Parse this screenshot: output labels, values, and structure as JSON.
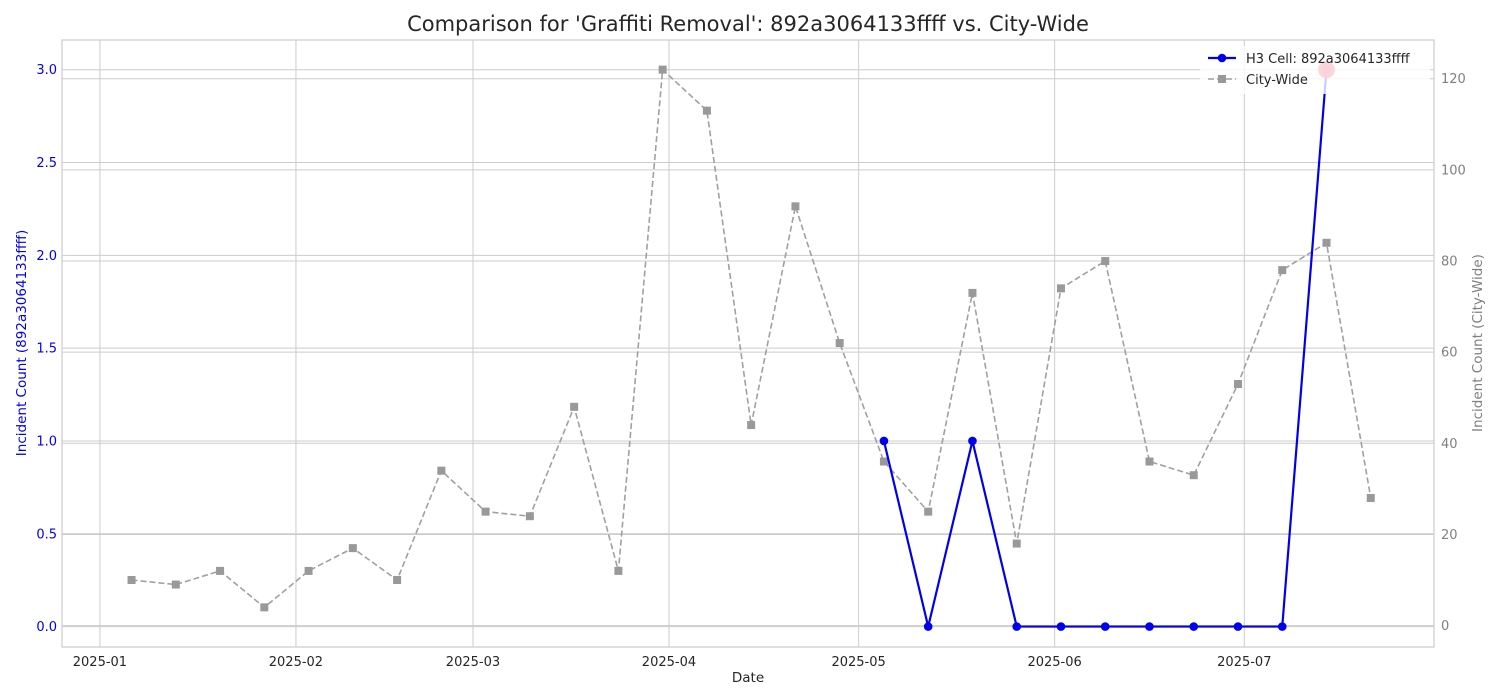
{
  "chart_data": {
    "type": "line",
    "title": "Comparison for 'Graffiti Removal': 892a3064133ffff vs. City-Wide",
    "xlabel": "Date",
    "ylabel_left": "Incident Count (892a3064133ffff)",
    "ylabel_right": "Incident Count (City-Wide)",
    "x_ticks": [
      "2025-01",
      "2025-02",
      "2025-03",
      "2025-04",
      "2025-05",
      "2025-06",
      "2025-07"
    ],
    "x_range": [
      "2024-12-26",
      "2025-07-31"
    ],
    "ylim_left": [
      -0.11,
      3.16
    ],
    "ylim_right": [
      -4.7,
      128.5
    ],
    "y_ticks_left": [
      "0.0",
      "0.5",
      "1.0",
      "1.5",
      "2.0",
      "2.5",
      "3.0"
    ],
    "y_ticks_right": [
      "0",
      "20",
      "40",
      "60",
      "80",
      "100",
      "120"
    ],
    "grid": true,
    "legend_placement": "top-right",
    "series": [
      {
        "name": "H3 Cell: 892a3064133ffff",
        "axis": "left",
        "color": "#0000ee",
        "style": "solid",
        "marker": "circle",
        "x": [
          "2025-05-05",
          "2025-05-12",
          "2025-05-19",
          "2025-05-26",
          "2025-06-02",
          "2025-06-09",
          "2025-06-16",
          "2025-06-23",
          "2025-06-30",
          "2025-07-07",
          "2025-07-14"
        ],
        "y": [
          1,
          0,
          1,
          0,
          0,
          0,
          0,
          0,
          0,
          0,
          3
        ]
      },
      {
        "name": "City-Wide",
        "axis": "right",
        "color": "#a0a0a0",
        "style": "dashed",
        "marker": "square",
        "x": [
          "2025-01-06",
          "2025-01-13",
          "2025-01-20",
          "2025-01-27",
          "2025-02-03",
          "2025-02-10",
          "2025-02-17",
          "2025-02-24",
          "2025-03-03",
          "2025-03-10",
          "2025-03-17",
          "2025-03-24",
          "2025-03-31",
          "2025-04-07",
          "2025-04-14",
          "2025-04-21",
          "2025-04-28",
          "2025-05-05",
          "2025-05-12",
          "2025-05-19",
          "2025-05-26",
          "2025-06-02",
          "2025-06-09",
          "2025-06-16",
          "2025-06-23",
          "2025-06-30",
          "2025-07-07",
          "2025-07-14",
          "2025-07-21"
        ],
        "y": [
          10,
          9,
          12,
          4,
          12,
          17,
          10,
          34,
          25,
          24,
          48,
          12,
          122,
          113,
          44,
          92,
          62,
          36,
          25,
          73,
          18,
          74,
          80,
          36,
          33,
          53,
          78,
          84,
          28
        ]
      }
    ],
    "highlight": {
      "series": "H3 Cell: 892a3064133ffff",
      "x": "2025-07-14",
      "y": 3,
      "color": "#ee2233"
    }
  }
}
